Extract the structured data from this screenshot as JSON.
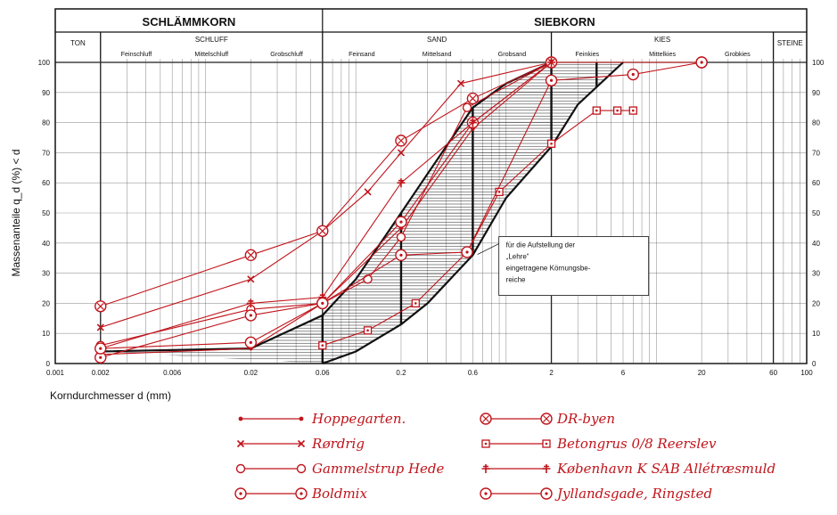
{
  "chart_data": {
    "type": "line",
    "xscale": "log",
    "xlim": [
      0.001,
      100
    ],
    "ylim": [
      0,
      100
    ],
    "ylabel": "Massenanteile q_d (%) < d",
    "y2_ticks": [
      "0",
      "10",
      "20",
      "30",
      "40",
      "50",
      "60",
      "70",
      "80",
      "90",
      "100"
    ],
    "y_ticks": [
      "0",
      "10",
      "20",
      "30",
      "40",
      "50",
      "60",
      "70",
      "80",
      "90",
      "100"
    ],
    "x_ticks": [
      {
        "v": 0.001,
        "t": "0.001"
      },
      {
        "v": 0.002,
        "t": "0.002"
      },
      {
        "v": 0.006,
        "t": "0.006"
      },
      {
        "v": 0.02,
        "t": "0.02"
      },
      {
        "v": 0.06,
        "t": "0.06"
      },
      {
        "v": 0.2,
        "t": "0.2"
      },
      {
        "v": 0.6,
        "t": "0.6"
      },
      {
        "v": 2,
        "t": "2"
      },
      {
        "v": 6,
        "t": "6"
      },
      {
        "v": 20,
        "t": "20"
      },
      {
        "v": 60,
        "t": "60"
      },
      {
        "v": 100,
        "t": "100"
      }
    ],
    "header": {
      "top": [
        {
          "text": "SCHLÄMMKORN",
          "x0": 0.001,
          "x1": 0.06
        },
        {
          "text": "SIEBKORN",
          "x0": 0.06,
          "x1": 100
        }
      ],
      "main": [
        {
          "text": "TON",
          "x0": 0.001,
          "x1": 0.002
        },
        {
          "text": "SCHLUFF",
          "x0": 0.002,
          "x1": 0.06
        },
        {
          "text": "SAND",
          "x0": 0.06,
          "x1": 2
        },
        {
          "text": "KIES",
          "x0": 2,
          "x1": 60
        },
        {
          "text": "STEINE",
          "x0": 60,
          "x1": 100
        }
      ],
      "sub": [
        {
          "text": "Feinschluff",
          "x0": 0.002,
          "x1": 0.006
        },
        {
          "text": "Mittelschluff",
          "x0": 0.006,
          "x1": 0.02
        },
        {
          "text": "Grobschluff",
          "x0": 0.02,
          "x1": 0.06
        },
        {
          "text": "Feinsand",
          "x0": 0.06,
          "x1": 0.2
        },
        {
          "text": "Mittelsand",
          "x0": 0.2,
          "x1": 0.6
        },
        {
          "text": "Grobsand",
          "x0": 0.6,
          "x1": 2
        },
        {
          "text": "Feinkies",
          "x0": 2,
          "x1": 6
        },
        {
          "text": "Mittelkies",
          "x0": 6,
          "x1": 20
        },
        {
          "text": "Grobkies",
          "x0": 20,
          "x1": 60
        }
      ]
    },
    "band": {
      "upper": [
        [
          0.002,
          4
        ],
        [
          0.02,
          5
        ],
        [
          0.06,
          16
        ],
        [
          0.1,
          28
        ],
        [
          0.2,
          50
        ],
        [
          0.3,
          63
        ],
        [
          0.6,
          85
        ],
        [
          1,
          93
        ],
        [
          2,
          100
        ]
      ],
      "lower": [
        [
          0.06,
          0
        ],
        [
          0.1,
          4
        ],
        [
          0.2,
          13
        ],
        [
          0.3,
          20
        ],
        [
          0.6,
          36
        ],
        [
          1,
          55
        ],
        [
          2,
          72
        ],
        [
          3,
          86
        ],
        [
          6,
          100
        ]
      ]
    },
    "band_ticks": [
      [
        0.06,
        0,
        16
      ],
      [
        0.2,
        13,
        50
      ],
      [
        0.6,
        36,
        85
      ],
      [
        2,
        72,
        100
      ],
      [
        4,
        92,
        100
      ]
    ],
    "annotation": {
      "lines": [
        "für die Aufstellung der",
        "„Lehre“",
        "eingetragene Körnungsbe-",
        "reiche"
      ],
      "anchor": [
        0.7,
        38
      ]
    },
    "axis_title": "Korndurchmesser d (mm)",
    "series": [
      {
        "name": "Hoppegarten.",
        "marker": "dot",
        "points": [
          [
            0.002,
            3
          ],
          [
            0.02,
            5
          ],
          [
            0.06,
            20
          ],
          [
            0.2,
            45
          ],
          [
            0.6,
            78
          ],
          [
            2,
            100
          ]
        ]
      },
      {
        "name": "Rørdrig",
        "marker": "cross",
        "points": [
          [
            0.002,
            12
          ],
          [
            0.02,
            28
          ],
          [
            0.06,
            44
          ],
          [
            0.12,
            57
          ],
          [
            0.2,
            70
          ],
          [
            0.5,
            93
          ],
          [
            2,
            100
          ]
        ]
      },
      {
        "name": "Gammelstrup Hede",
        "marker": "ring",
        "points": [
          [
            0.002,
            6
          ],
          [
            0.02,
            18
          ],
          [
            0.06,
            20
          ],
          [
            0.12,
            28
          ],
          [
            0.2,
            42
          ],
          [
            0.55,
            85
          ],
          [
            2,
            100
          ]
        ]
      },
      {
        "name": "Boldmix",
        "marker": "ringdot",
        "points": [
          [
            0.002,
            2
          ],
          [
            0.02,
            16
          ],
          [
            0.06,
            20
          ],
          [
            0.2,
            47
          ],
          [
            0.6,
            80
          ],
          [
            2,
            100
          ],
          [
            20,
            100
          ]
        ]
      },
      {
        "name": "DR-byen",
        "marker": "xcircle",
        "points": [
          [
            0.002,
            19
          ],
          [
            0.02,
            36
          ],
          [
            0.06,
            44
          ],
          [
            0.2,
            74
          ],
          [
            0.6,
            88
          ],
          [
            2,
            100
          ]
        ]
      },
      {
        "name": "Betongrus 0/8 Reerslev",
        "marker": "sqdot",
        "points": [
          [
            0.06,
            6
          ],
          [
            0.12,
            11
          ],
          [
            0.25,
            20
          ],
          [
            0.55,
            37
          ],
          [
            0.9,
            57
          ],
          [
            2,
            73
          ],
          [
            4,
            84
          ],
          [
            5.5,
            84
          ],
          [
            7,
            84
          ]
        ]
      },
      {
        "name": "København K SAB Allétræsmuld",
        "marker": "plus",
        "points": [
          [
            0.002,
            5
          ],
          [
            0.02,
            20
          ],
          [
            0.06,
            22
          ],
          [
            0.2,
            60
          ],
          [
            0.6,
            80
          ],
          [
            2,
            100
          ]
        ]
      },
      {
        "name": "Jyllandsgade, Ringsted",
        "marker": "ringdot",
        "points": [
          [
            0.002,
            5
          ],
          [
            0.02,
            7
          ],
          [
            0.06,
            20
          ],
          [
            0.2,
            36
          ],
          [
            0.55,
            37
          ],
          [
            2,
            94
          ],
          [
            7,
            96
          ],
          [
            20,
            100
          ]
        ]
      }
    ]
  }
}
